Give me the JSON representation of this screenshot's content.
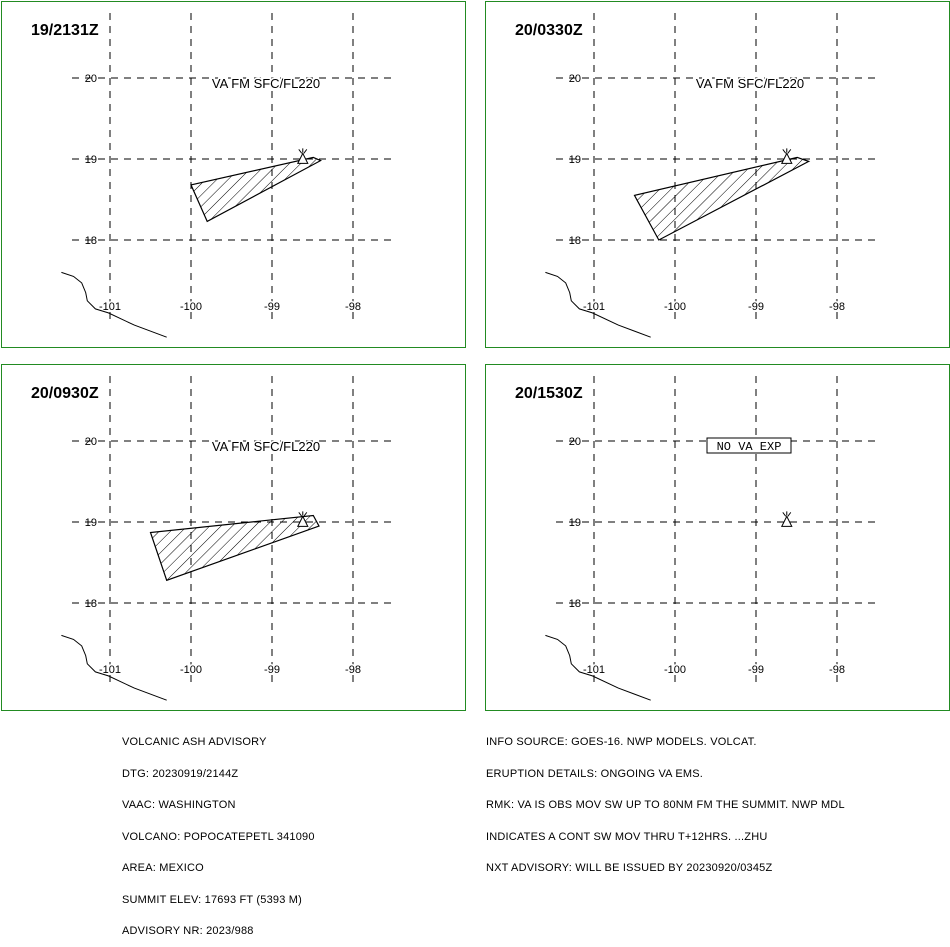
{
  "panels": [
    {
      "time": "19/2131Z",
      "label": "VA FM SFC/FL220",
      "label_boxed": false,
      "show_ash": true,
      "ash_polygon_lonlat": [
        [
          -98.49,
          19.02
        ],
        [
          -98.4,
          18.98
        ],
        [
          -99.8,
          18.23
        ],
        [
          -100.0,
          18.68
        ]
      ]
    },
    {
      "time": "20/0330Z",
      "label": "VA FM SFC/FL220",
      "label_boxed": false,
      "show_ash": true,
      "ash_polygon_lonlat": [
        [
          -98.49,
          19.02
        ],
        [
          -98.35,
          18.97
        ],
        [
          -100.2,
          18.0
        ],
        [
          -100.5,
          18.55
        ]
      ]
    },
    {
      "time": "20/0930Z",
      "label": "VA FM SFC/FL220",
      "label_boxed": false,
      "show_ash": true,
      "ash_polygon_lonlat": [
        [
          -98.49,
          19.08
        ],
        [
          -98.42,
          18.95
        ],
        [
          -100.3,
          18.28
        ],
        [
          -100.5,
          18.87
        ]
      ]
    },
    {
      "time": "20/1530Z",
      "label": "NO VA EXP",
      "label_boxed": true,
      "show_ash": false,
      "ash_polygon_lonlat": []
    }
  ],
  "axes": {
    "lon_ticks": [
      -101,
      -100,
      -99,
      -98
    ],
    "lat_ticks": [
      18,
      19,
      20
    ],
    "lon_labels": [
      "-101",
      "-100",
      "-99",
      "-98"
    ],
    "lat_labels": [
      "18",
      "19",
      "20"
    ]
  },
  "volcano_lonlat": [
    -98.62,
    19.02
  ],
  "coastline_lonlat": [
    [
      -101.6,
      17.6
    ],
    [
      -101.45,
      17.55
    ],
    [
      -101.35,
      17.47
    ],
    [
      -101.3,
      17.35
    ],
    [
      -101.28,
      17.25
    ],
    [
      -101.18,
      17.15
    ],
    [
      -101.02,
      17.1
    ],
    [
      -100.7,
      16.95
    ],
    [
      -100.3,
      16.8
    ]
  ],
  "colors": {
    "border": "#228B22",
    "ink": "#000000"
  },
  "advisory_left": [
    "VOLCANIC ASH ADVISORY",
    "DTG: 20230919/2144Z",
    "VAAC: WASHINGTON",
    "VOLCANO: POPOCATEPETL 341090",
    "AREA: MEXICO",
    "SUMMIT ELEV: 17693 FT (5393 M)",
    "ADVISORY NR: 2023/988"
  ],
  "advisory_right": [
    "INFO SOURCE: GOES-16. NWP MODELS. VOLCAT.",
    "ERUPTION DETAILS: ONGOING VA EMS.",
    "RMK: VA IS OBS MOV SW UP TO 80NM FM THE SUMMIT. NWP MDL",
    "INDICATES A CONT SW MOV THRU T+12HRS. ...ZHU",
    "NXT ADVISORY: WILL BE ISSUED BY 20230920/0345Z"
  ]
}
